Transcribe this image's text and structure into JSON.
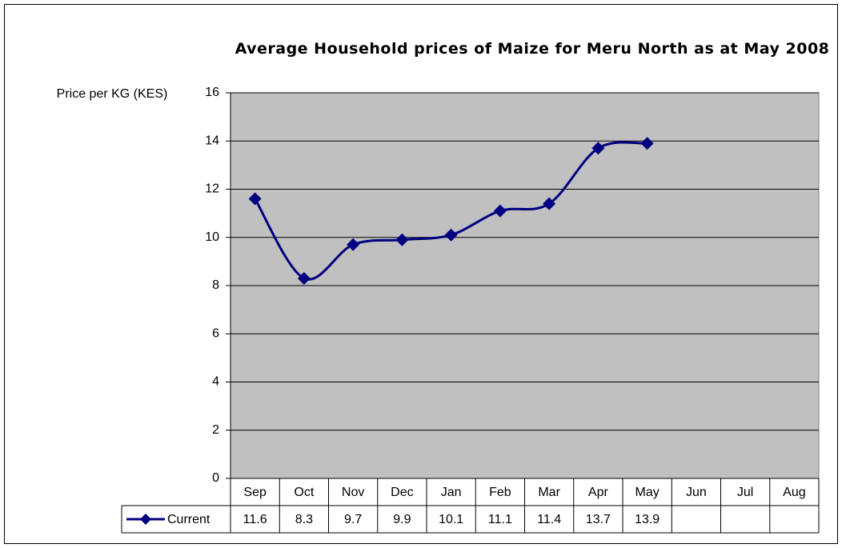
{
  "chart_data": {
    "type": "line",
    "title": "Average Household prices of Maize for Meru North as at May 2008",
    "y_label": "Price per KG (KES)",
    "categories": [
      "Sep",
      "Oct",
      "Nov",
      "Dec",
      "Jan",
      "Feb",
      "Mar",
      "Apr",
      "May",
      "Jun",
      "Jul",
      "Aug"
    ],
    "series": [
      {
        "name": "Current",
        "color": "#000080",
        "values": [
          11.6,
          8.3,
          9.7,
          9.9,
          10.1,
          11.1,
          11.4,
          13.7,
          13.9,
          null,
          null,
          null
        ]
      }
    ],
    "ylim": [
      0,
      16
    ],
    "yticks": [
      0,
      2,
      4,
      6,
      8,
      10,
      12,
      14,
      16
    ],
    "grid": true,
    "smooth": true,
    "data_table": true
  }
}
